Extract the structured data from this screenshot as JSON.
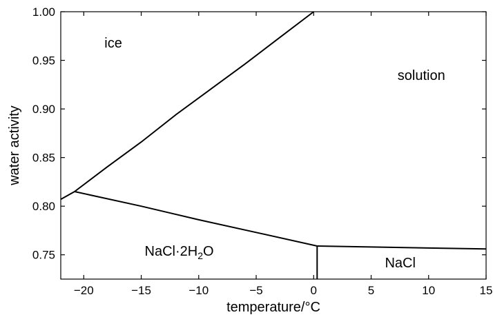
{
  "chart_data": {
    "type": "line",
    "title": "",
    "xlabel": "temperature/°C",
    "ylabel": "water activity",
    "xlim": [
      -22,
      15
    ],
    "ylim": [
      0.725,
      1.0
    ],
    "grid": false,
    "legend": "none",
    "x_ticks": [
      -20,
      -15,
      -10,
      -5,
      0,
      5,
      10,
      15
    ],
    "x_tick_labels": [
      "−20",
      "−15",
      "−10",
      "−5",
      "0",
      "5",
      "10",
      "15"
    ],
    "y_ticks": [
      0.75,
      0.8,
      0.85,
      0.9,
      0.95,
      1.0
    ],
    "y_tick_labels": [
      "0.75",
      "0.80",
      "0.85",
      "0.90",
      "0.95",
      "1.00"
    ],
    "series": [
      {
        "key": "ice-solution",
        "x": [
          -22,
          -20.8,
          -18,
          -15,
          -12,
          -9,
          -6,
          -3,
          0
        ],
        "y": [
          0.807,
          0.815,
          0.84,
          0.866,
          0.894,
          0.92,
          0.946,
          0.973,
          1.0
        ]
      },
      {
        "key": "ice-hydrate",
        "x": [
          -20.8,
          -15,
          -10,
          -5,
          0.3
        ],
        "y": [
          0.815,
          0.8,
          0.786,
          0.773,
          0.759
        ]
      },
      {
        "key": "solution-nacl",
        "x": [
          0.3,
          5,
          10,
          15
        ],
        "y": [
          0.759,
          0.758,
          0.757,
          0.756
        ]
      },
      {
        "key": "hydrate-nacl",
        "x": [
          0.3,
          0.3
        ],
        "y": [
          0.759,
          0.725
        ]
      }
    ],
    "annotations": [
      {
        "key": "ice",
        "text": "ice",
        "x": -18.2,
        "y": 0.963
      },
      {
        "key": "solution",
        "text": "solution",
        "x": 7.3,
        "y": 0.93
      },
      {
        "key": "nacl-hydrate",
        "text": "NaCl·2H",
        "sub": "2",
        "tail": "O",
        "x": -14.7,
        "y": 0.749
      },
      {
        "key": "nacl",
        "text": "NaCl",
        "x": 6.2,
        "y": 0.737
      }
    ],
    "colors": {
      "line": "#000000",
      "background": "#ffffff"
    }
  }
}
